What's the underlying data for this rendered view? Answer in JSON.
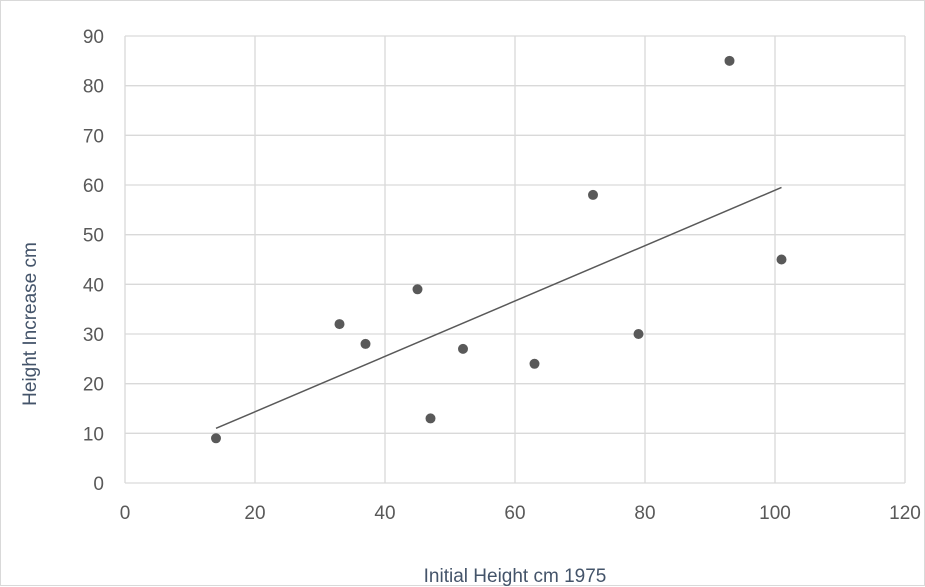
{
  "chart_data": {
    "type": "scatter",
    "title": "",
    "xlabel": "Initial Height cm 1975",
    "ylabel": "Height Increase cm",
    "xlim": [
      0,
      120
    ],
    "ylim": [
      0,
      90
    ],
    "x_ticks": [
      0,
      20,
      40,
      60,
      80,
      100,
      120
    ],
    "y_ticks": [
      0,
      10,
      20,
      30,
      40,
      50,
      60,
      70,
      80,
      90
    ],
    "grid": true,
    "legend": "none",
    "series": [
      {
        "x": [
          14,
          33,
          37,
          45,
          47,
          52,
          63,
          72,
          79,
          93,
          101
        ],
        "y": [
          9,
          32,
          28,
          39,
          13,
          27,
          24,
          58,
          30,
          85,
          45
        ],
        "color": "#595959"
      }
    ],
    "trendline": {
      "type": "linear",
      "points": [
        [
          14,
          11
        ],
        [
          101,
          59.5
        ]
      ],
      "color": "#595959"
    }
  }
}
